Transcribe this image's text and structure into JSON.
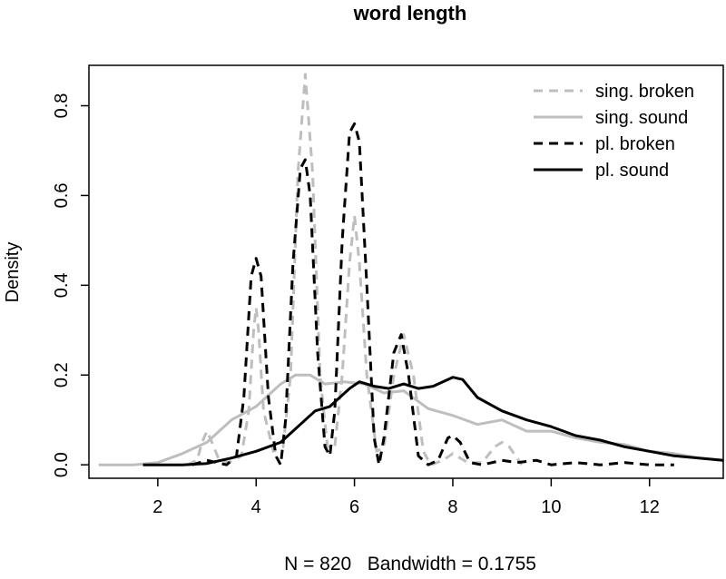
{
  "chart_data": {
    "type": "line",
    "title": "word length",
    "ylabel": "Density",
    "footer": "N = 820   Bandwidth = 0.1755",
    "xlim": [
      0.6,
      13.5
    ],
    "ylim": [
      -0.03,
      0.89
    ],
    "x_ticks": [
      2,
      4,
      6,
      8,
      10,
      12
    ],
    "y_ticks": [
      0.0,
      0.2,
      0.4,
      0.6,
      0.8
    ],
    "legend_position": "top-right",
    "series": [
      {
        "name": "sing. broken",
        "color": "#bebebe",
        "dash": "dashed",
        "points": [
          [
            2.6,
            0.0
          ],
          [
            2.8,
            0.01
          ],
          [
            2.9,
            0.05
          ],
          [
            3.0,
            0.075
          ],
          [
            3.1,
            0.05
          ],
          [
            3.25,
            0.01
          ],
          [
            3.45,
            0.005
          ],
          [
            3.7,
            0.02
          ],
          [
            3.85,
            0.12
          ],
          [
            3.95,
            0.3
          ],
          [
            4.0,
            0.35
          ],
          [
            4.05,
            0.3
          ],
          [
            4.15,
            0.12
          ],
          [
            4.35,
            0.03
          ],
          [
            4.55,
            0.04
          ],
          [
            4.7,
            0.2
          ],
          [
            4.85,
            0.65
          ],
          [
            5.0,
            0.87
          ],
          [
            5.15,
            0.65
          ],
          [
            5.3,
            0.2
          ],
          [
            5.45,
            0.04
          ],
          [
            5.6,
            0.04
          ],
          [
            5.75,
            0.2
          ],
          [
            5.9,
            0.45
          ],
          [
            6.0,
            0.555
          ],
          [
            6.1,
            0.45
          ],
          [
            6.25,
            0.2
          ],
          [
            6.45,
            0.03
          ],
          [
            6.6,
            0.04
          ],
          [
            6.8,
            0.2
          ],
          [
            7.0,
            0.29
          ],
          [
            7.2,
            0.2
          ],
          [
            7.4,
            0.03
          ],
          [
            7.55,
            0.0
          ],
          [
            7.8,
            0.01
          ],
          [
            8.0,
            0.025
          ],
          [
            8.3,
            0.005
          ],
          [
            8.6,
            0.005
          ],
          [
            8.85,
            0.04
          ],
          [
            9.0,
            0.05
          ],
          [
            9.15,
            0.04
          ],
          [
            9.4,
            0.0
          ]
        ]
      },
      {
        "name": "sing. sound",
        "color": "#bebebe",
        "dash": "solid",
        "points": [
          [
            0.8,
            0.0
          ],
          [
            1.5,
            0.0
          ],
          [
            2.0,
            0.005
          ],
          [
            2.5,
            0.025
          ],
          [
            3.0,
            0.05
          ],
          [
            3.5,
            0.1
          ],
          [
            4.0,
            0.13
          ],
          [
            4.5,
            0.18
          ],
          [
            4.8,
            0.2
          ],
          [
            5.1,
            0.2
          ],
          [
            5.4,
            0.18
          ],
          [
            5.8,
            0.185
          ],
          [
            6.2,
            0.18
          ],
          [
            6.6,
            0.16
          ],
          [
            7.0,
            0.165
          ],
          [
            7.5,
            0.125
          ],
          [
            8.0,
            0.11
          ],
          [
            8.5,
            0.09
          ],
          [
            9.0,
            0.1
          ],
          [
            9.5,
            0.075
          ],
          [
            10.0,
            0.075
          ],
          [
            10.5,
            0.06
          ],
          [
            11.0,
            0.05
          ],
          [
            11.5,
            0.045
          ],
          [
            12.0,
            0.03
          ],
          [
            12.5,
            0.025
          ],
          [
            13.0,
            0.015
          ],
          [
            13.5,
            0.01
          ]
        ]
      },
      {
        "name": "pl. broken",
        "color": "#000000",
        "dash": "dashed",
        "points": [
          [
            2.7,
            0.0
          ],
          [
            3.0,
            0.01
          ],
          [
            3.4,
            0.0
          ],
          [
            3.6,
            0.02
          ],
          [
            3.75,
            0.15
          ],
          [
            3.9,
            0.42
          ],
          [
            4.0,
            0.46
          ],
          [
            4.1,
            0.42
          ],
          [
            4.25,
            0.15
          ],
          [
            4.4,
            0.02
          ],
          [
            4.5,
            0.0
          ],
          [
            4.6,
            0.1
          ],
          [
            4.75,
            0.45
          ],
          [
            4.9,
            0.66
          ],
          [
            5.0,
            0.68
          ],
          [
            5.1,
            0.6
          ],
          [
            5.25,
            0.25
          ],
          [
            5.4,
            0.04
          ],
          [
            5.5,
            0.02
          ],
          [
            5.6,
            0.12
          ],
          [
            5.75,
            0.5
          ],
          [
            5.9,
            0.74
          ],
          [
            6.0,
            0.76
          ],
          [
            6.1,
            0.72
          ],
          [
            6.25,
            0.4
          ],
          [
            6.4,
            0.06
          ],
          [
            6.5,
            0.0
          ],
          [
            6.6,
            0.06
          ],
          [
            6.8,
            0.25
          ],
          [
            6.95,
            0.29
          ],
          [
            7.1,
            0.2
          ],
          [
            7.3,
            0.02
          ],
          [
            7.5,
            0.0
          ],
          [
            7.7,
            0.01
          ],
          [
            7.9,
            0.06
          ],
          [
            8.0,
            0.065
          ],
          [
            8.15,
            0.05
          ],
          [
            8.35,
            0.005
          ],
          [
            8.6,
            0.0
          ],
          [
            9.0,
            0.01
          ],
          [
            9.3,
            0.005
          ],
          [
            9.7,
            0.01
          ],
          [
            10.0,
            0.0
          ],
          [
            10.5,
            0.005
          ],
          [
            11.0,
            0.0
          ],
          [
            11.5,
            0.005
          ],
          [
            12.0,
            0.0
          ],
          [
            12.5,
            0.0
          ]
        ]
      },
      {
        "name": "pl. sound",
        "color": "#000000",
        "dash": "solid",
        "points": [
          [
            1.7,
            0.0
          ],
          [
            2.5,
            0.0
          ],
          [
            3.0,
            0.003
          ],
          [
            3.5,
            0.015
          ],
          [
            4.0,
            0.03
          ],
          [
            4.5,
            0.05
          ],
          [
            5.0,
            0.1
          ],
          [
            5.2,
            0.12
          ],
          [
            5.5,
            0.13
          ],
          [
            5.9,
            0.17
          ],
          [
            6.1,
            0.185
          ],
          [
            6.4,
            0.175
          ],
          [
            6.7,
            0.17
          ],
          [
            7.0,
            0.18
          ],
          [
            7.3,
            0.17
          ],
          [
            7.6,
            0.175
          ],
          [
            8.0,
            0.195
          ],
          [
            8.2,
            0.19
          ],
          [
            8.5,
            0.15
          ],
          [
            9.0,
            0.12
          ],
          [
            9.5,
            0.1
          ],
          [
            10.0,
            0.085
          ],
          [
            10.5,
            0.065
          ],
          [
            11.0,
            0.055
          ],
          [
            11.5,
            0.04
          ],
          [
            12.0,
            0.03
          ],
          [
            12.5,
            0.02
          ],
          [
            13.0,
            0.015
          ],
          [
            13.5,
            0.01
          ]
        ]
      }
    ]
  }
}
